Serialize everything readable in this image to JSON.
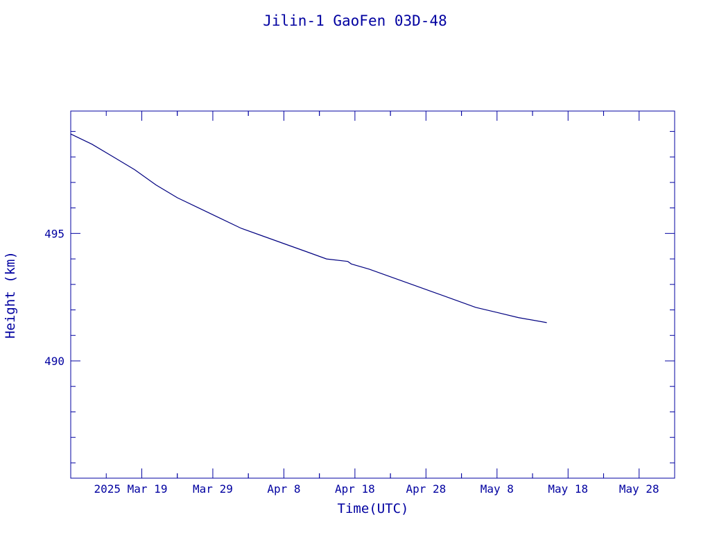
{
  "chart_data": {
    "type": "line",
    "title": "Jilin-1 GaoFen 03D-48",
    "xlabel": "Time(UTC)",
    "ylabel": "Height (km)",
    "x_tick_labels": [
      "2025 Mar 19",
      "Mar 29",
      "Apr  8",
      "Apr 18",
      "Apr 28",
      "May  8",
      "May 18",
      "May 28"
    ],
    "x_tick_dates": [
      "2025-03-19",
      "2025-03-29",
      "2025-04-08",
      "2025-04-18",
      "2025-04-28",
      "2025-05-08",
      "2025-05-18",
      "2025-05-28"
    ],
    "xlim": [
      "2025-03-09",
      "2025-06-02"
    ],
    "y_ticks": [
      490,
      495
    ],
    "ylim": [
      485.4,
      499.8
    ],
    "grid": false,
    "legend": "none",
    "colors": {
      "axes": "#0000a0",
      "line": "#000080"
    },
    "series": [
      {
        "x": [
          "2025-03-09",
          "2025-03-12",
          "2025-03-15",
          "2025-03-18",
          "2025-03-21",
          "2025-03-24",
          "2025-03-27",
          "2025-03-30",
          "2025-04-02",
          "2025-04-05",
          "2025-04-08",
          "2025-04-11",
          "2025-04-14",
          "2025-04-17",
          "2025-04-17.5",
          "2025-04-20",
          "2025-04-23",
          "2025-04-26",
          "2025-04-29",
          "2025-05-02",
          "2025-05-05",
          "2025-05-08",
          "2025-05-11",
          "2025-05-15"
        ],
        "y": [
          498.9,
          498.5,
          498.0,
          497.5,
          496.9,
          496.4,
          496.0,
          495.6,
          495.2,
          494.9,
          494.6,
          494.3,
          494.0,
          493.9,
          493.8,
          493.6,
          493.3,
          493.0,
          492.7,
          492.4,
          492.1,
          491.9,
          491.7,
          491.5
        ]
      }
    ]
  }
}
